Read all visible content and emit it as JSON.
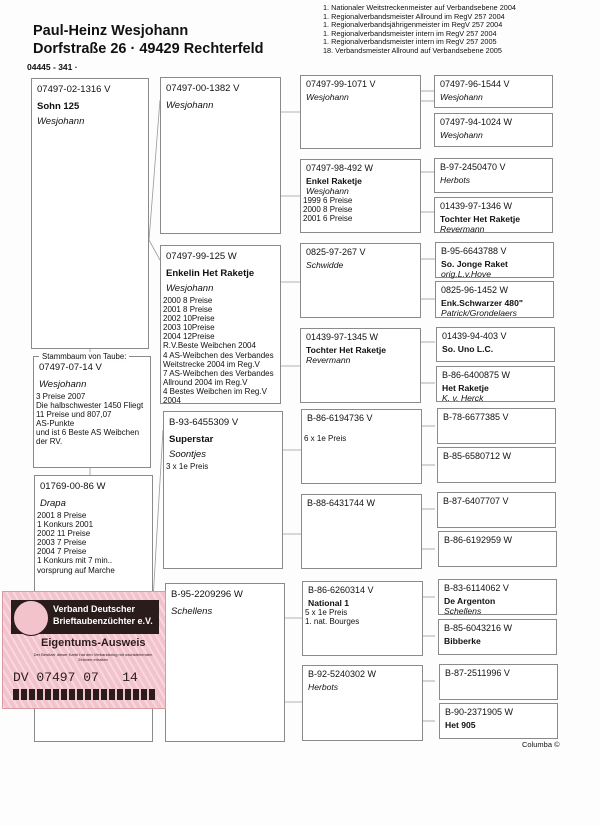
{
  "header": {
    "owner": "Paul-Heinz Wesjohann",
    "address": "Dorfstraße 26  ·  49429 Rechterfeld",
    "phone": "04445 - 341  ·",
    "titles": [
      "1. Nationaler Weitstreckenmeister auf Verbandsebene 2004",
      "1. Regionalverbandsmeister Allround im RegV 257 2004",
      "1. Regionalverbandsjährigenmeister im RegV 257 2004",
      "1. Regionalverbandsmeister intern im RegV 257 2004",
      "1. Regionalverbandsmeister intern im RegV 257 2005",
      "18. Verbandsmeister Allround auf Verbandsebene 2005"
    ]
  },
  "stammbaum_label": "Stammbaum von Taube:",
  "pigeons": [
    {
      "ring": "07497-02-1316 V",
      "name": "Sohn 125",
      "breeder": "Wesjohann",
      "notes": []
    },
    {
      "ring": "07497-07-14 V",
      "name": "",
      "breeder": "Wesjohann",
      "notes": [
        "3    Preise 2007",
        "Die halbschwester 1450 Fliegt",
        "11 Preise und 807,07",
        "AS-Punkte",
        "und ist 6 Beste AS Weibchen",
        "der RV."
      ]
    },
    {
      "ring": "01769-00-86 W",
      "name": "",
      "breeder": "Drapa",
      "notes": [
        "2001    8   Preise",
        "1 Konkurs 2001",
        "2002  11   Preise",
        "2003    7   Preise",
        "2004    7   Preise",
        "1 Konkurs mit 7 min..",
        "vorsprung auf Marche"
      ]
    },
    {
      "ring": "07497-00-1382 V",
      "name": "",
      "breeder": "Wesjohann",
      "notes": []
    },
    {
      "ring": "07497-99-125 W",
      "name": "Enkelin Het Raketje",
      "breeder": "Wesjohann",
      "notes": [
        "2000   8 Preise",
        "2001   8 Preise",
        "2002  10Preise",
        "2003  10Preise",
        "2004  12Preise",
        "R.V.Beste Weibchen 2004",
        "4 AS-Weibchen des Verbandes",
        "Weitstrecke 2004 im Reg.V",
        "7 AS-Weibchen des Verbandes",
        "Allround 2004 im Reg.V",
        "4 Bestes Weibchen im Reg.V",
        "2004"
      ]
    },
    {
      "ring": "B-93-6455309 V",
      "name": "Superstar",
      "breeder": "Soontjes",
      "notes": [
        "3 x 1e Preis"
      ]
    },
    {
      "ring": "B-95-2209296 W",
      "name": "",
      "breeder": "Schellens",
      "notes": []
    },
    {
      "ring": "07497-99-1071 V",
      "name": "",
      "breeder": "Wesjohann",
      "notes": []
    },
    {
      "ring": "07497-98-492 W",
      "name": "Enkel Raketje",
      "breeder": "Wesjohann",
      "notes": [
        "1999    6 Preise",
        "2000    8 Preise",
        "2001    6 Preise"
      ]
    },
    {
      "ring": "0825-97-267 V",
      "name": "",
      "breeder": "Schwidde",
      "notes": []
    },
    {
      "ring": "01439-97-1345 W",
      "name": "Tochter Het Raketje",
      "breeder": "Revermann",
      "notes": []
    },
    {
      "ring": "B-86-6194736 V",
      "name": "",
      "breeder": "",
      "notes": [
        "6 x 1e Preis"
      ]
    },
    {
      "ring": "B-88-6431744 W",
      "name": "",
      "breeder": "",
      "notes": []
    },
    {
      "ring": "B-86-6260314 V",
      "name": "National 1",
      "breeder": "",
      "notes": [
        "5 x 1e Preis",
        "1. nat. Bourges"
      ]
    },
    {
      "ring": "B-92-5240302 W",
      "name": "",
      "breeder": "Herbots",
      "notes": []
    },
    {
      "ring": "07497-96-1544 V",
      "name": "",
      "breeder": "Wesjohann",
      "notes": []
    },
    {
      "ring": "07497-94-1024 W",
      "name": "",
      "breeder": "Wesjohann",
      "notes": []
    },
    {
      "ring": "B-97-2450470 V",
      "name": "",
      "breeder": "Herbots",
      "notes": []
    },
    {
      "ring": "01439-97-1346 W",
      "name": "Tochter Het Raketje",
      "breeder": "Revermann",
      "notes": []
    },
    {
      "ring": "B-95-6643788 V",
      "name": "So. Jonge Raket",
      "breeder": "orig.L.v.Hove",
      "notes": []
    },
    {
      "ring": "0825-96-1452 W",
      "name": "Enk.Schwarzer 480\"",
      "breeder": "Patrick/Grondelaers",
      "notes": []
    },
    {
      "ring": "01439-94-403 V",
      "name": "So. Uno L.C.",
      "breeder": "",
      "notes": []
    },
    {
      "ring": "B-86-6400875 W",
      "name": "Het Raketje",
      "breeder": "K. v. Herck",
      "notes": []
    },
    {
      "ring": "B-78-6677385 V",
      "name": "",
      "breeder": "",
      "notes": []
    },
    {
      "ring": "B-85-6580712 W",
      "name": "",
      "breeder": "",
      "notes": []
    },
    {
      "ring": "B-87-6407707 V",
      "name": "",
      "breeder": "",
      "notes": []
    },
    {
      "ring": "B-86-6192959 W",
      "name": "",
      "breeder": "",
      "notes": []
    },
    {
      "ring": "B-83-6114062 V",
      "name": "De Argenton",
      "breeder": "Schellens",
      "notes": []
    },
    {
      "ring": "B-85-6043216 W",
      "name": "Bibberke",
      "breeder": "",
      "notes": []
    },
    {
      "ring": "B-87-2511996 V",
      "name": "",
      "breeder": "",
      "notes": []
    },
    {
      "ring": "B-90-2371905 W",
      "name": "Het 905",
      "breeder": "",
      "notes": []
    }
  ],
  "card": {
    "org": [
      "Verband Deutscher",
      "Brieftaubenzüchter e.V."
    ],
    "document": "Eigentums-Ausweis",
    "small_text": "Der Besitzer dieser Karte hat den Verbandsring mit nachstehenden Zeichen erhalten",
    "ring_number": "DV 07497 07   14",
    "colors": {
      "background": "#f3c3cc",
      "dark": "#2b1c1c"
    }
  },
  "footer": "Columba ©"
}
